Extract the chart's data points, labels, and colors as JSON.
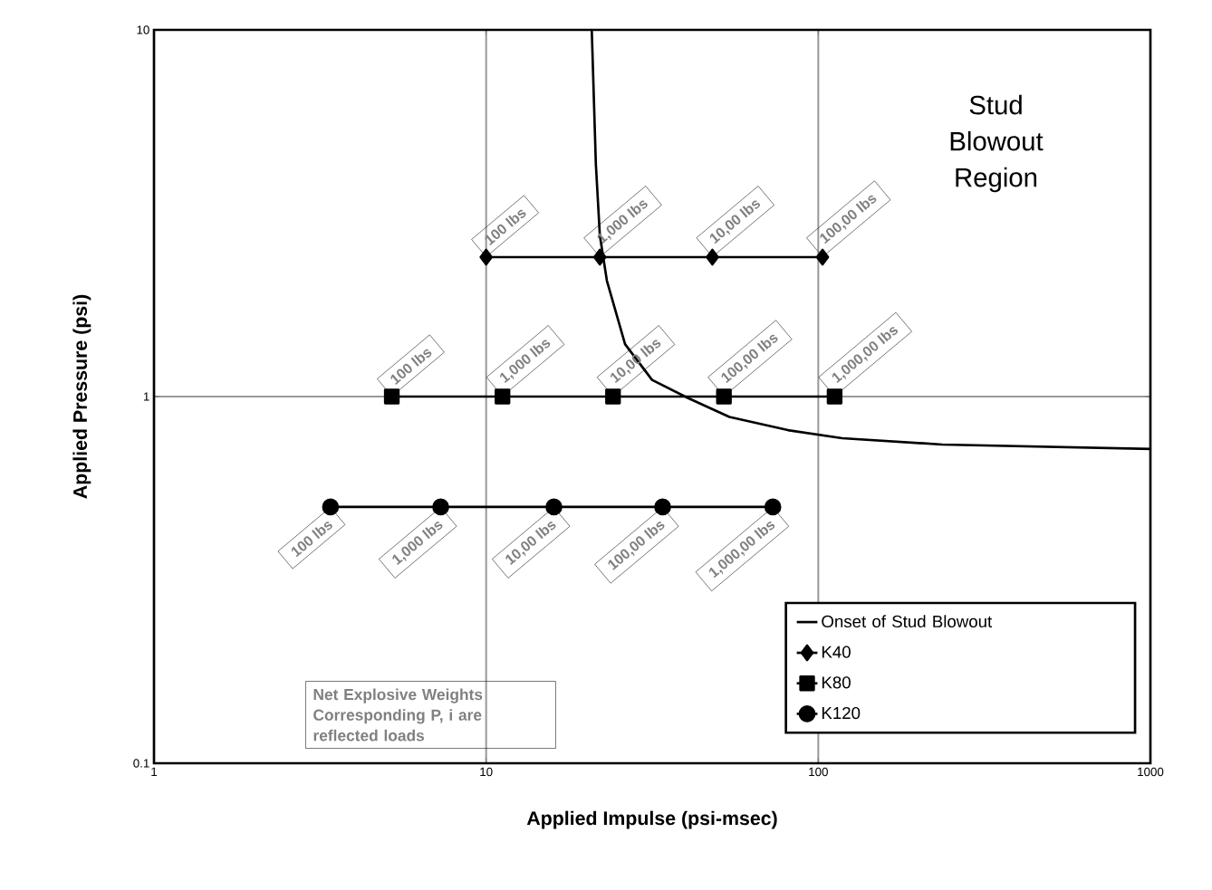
{
  "chart_data": {
    "type": "line",
    "xlabel": "Applied Impulse (psi-msec)",
    "ylabel": "Applied Pressure (psi)",
    "log": "xy",
    "grid": true,
    "legend": "bottom right",
    "xlim": [
      1,
      1000
    ],
    "ylim": [
      0.1,
      10
    ],
    "xticks": [
      1,
      10,
      100,
      1000
    ],
    "yticks": [
      0.1,
      1,
      10
    ],
    "annotations": [
      "Stud Blowout Region",
      "Net Explosive Weights Corresponding P, i are reflected loads",
      {
        "text": "100 lbs",
        "x": 10,
        "y": 2.4
      },
      {
        "text": "1,000 lbs",
        "x": 22,
        "y": 2.4
      },
      {
        "text": "10,00 lbs",
        "x": 48,
        "y": 2.4
      },
      {
        "text": "100,00 lbs",
        "x": 103,
        "y": 2.4
      },
      {
        "text": "100 lbs",
        "x": 5.2,
        "y": 1
      },
      {
        "text": "1,000 lbs",
        "x": 11.2,
        "y": 1
      },
      {
        "text": "10,00 lbs",
        "x": 24.1,
        "y": 1
      },
      {
        "text": "100,00 lbs",
        "x": 52,
        "y": 1
      },
      {
        "text": "1,000,00 lbs",
        "x": 112,
        "y": 1
      },
      {
        "text": "100 lbs",
        "x": 3.4,
        "y": 0.5
      },
      {
        "text": "1,000 lbs",
        "x": 7.3,
        "y": 0.5
      },
      {
        "text": "10,00 lbs",
        "x": 16,
        "y": 0.5
      },
      {
        "text": "100,00 lbs",
        "x": 34,
        "y": 0.5
      },
      {
        "text": "1,000,00 lbs",
        "x": 73,
        "y": 0.5
      }
    ],
    "series": [
      {
        "name": "Onset of Stud Blowout",
        "color": "#000000",
        "marker": "none",
        "x": [
          20.8,
          21.4,
          22,
          23.1,
          26.2,
          31.6,
          40.6,
          54,
          81,
          118,
          236,
          1000
        ],
        "values": [
          10,
          4.3,
          2.75,
          2.07,
          1.39,
          1.11,
          0.99,
          0.88,
          0.81,
          0.77,
          0.74,
          0.72
        ]
      },
      {
        "name": "K40",
        "color": "#000000",
        "marker": "diamond",
        "x": [
          10,
          22,
          48,
          103
        ],
        "values": [
          2.4,
          2.4,
          2.4,
          2.4
        ]
      },
      {
        "name": "K80",
        "color": "#000000",
        "marker": "square",
        "x": [
          5.2,
          11.2,
          24.1,
          52,
          112
        ],
        "values": [
          1,
          1,
          1,
          1,
          1
        ]
      },
      {
        "name": "K120",
        "color": "#000000",
        "marker": "circle",
        "x": [
          3.4,
          7.3,
          16,
          34,
          73
        ],
        "values": [
          0.5,
          0.5,
          0.5,
          0.5,
          0.5
        ]
      }
    ]
  }
}
